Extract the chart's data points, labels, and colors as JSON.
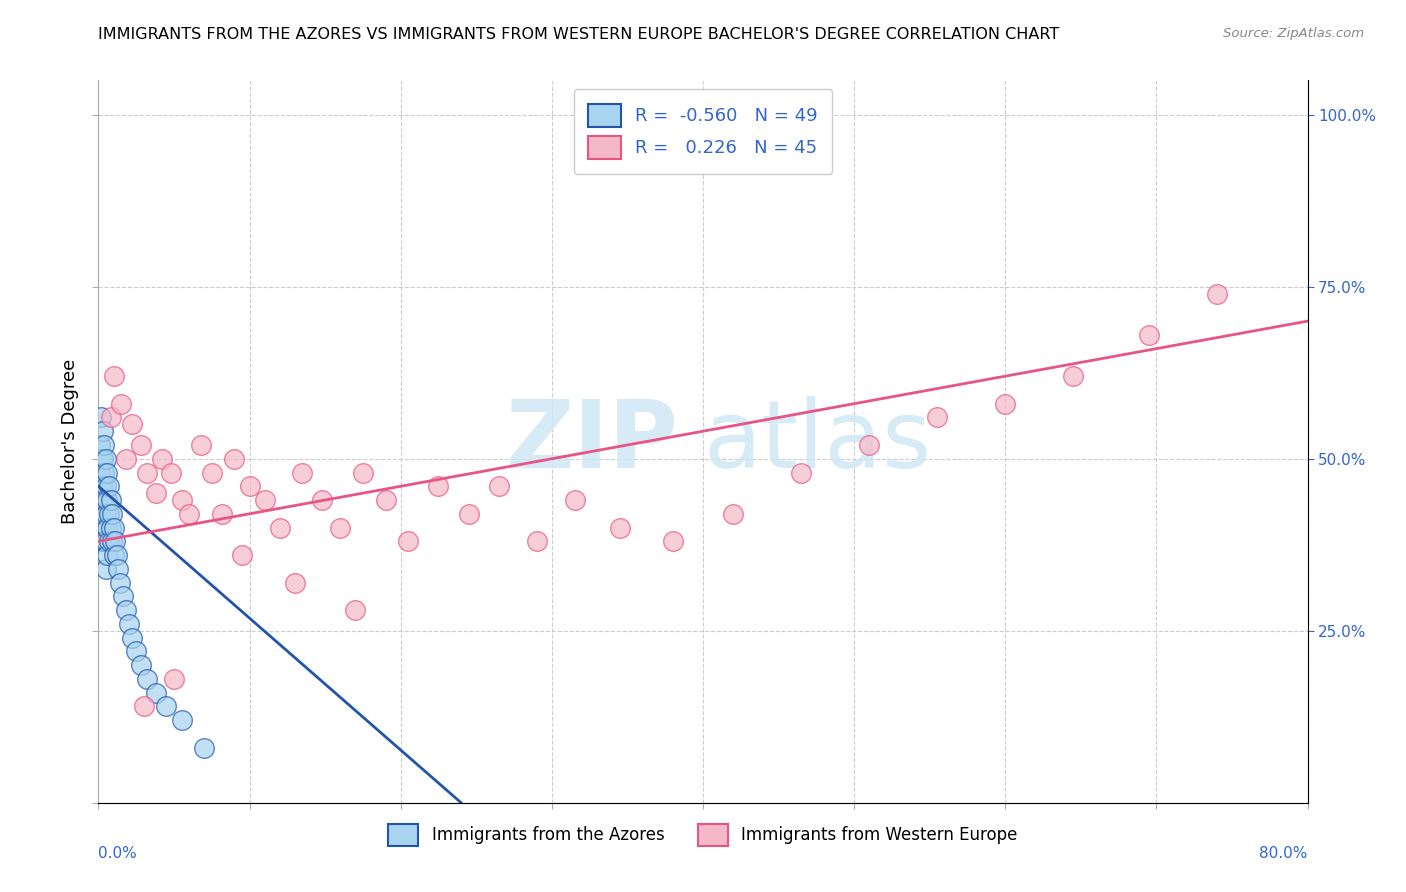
{
  "title": "IMMIGRANTS FROM THE AZORES VS IMMIGRANTS FROM WESTERN EUROPE BACHELOR'S DEGREE CORRELATION CHART",
  "source": "Source: ZipAtlas.com",
  "ylabel": "Bachelor's Degree",
  "legend_label1": "Immigrants from the Azores",
  "legend_label2": "Immigrants from Western Europe",
  "R1": "-0.560",
  "N1": "49",
  "R2": "0.226",
  "N2": "45",
  "color1": "#a8d4f0",
  "color2": "#f5b8c8",
  "line_color1": "#2255aa",
  "line_color2": "#e85585",
  "watermark_zip": "ZIP",
  "watermark_atlas": "atlas",
  "background": "#ffffff",
  "xlim": [
    0,
    0.8
  ],
  "ylim": [
    0,
    1.05
  ],
  "scatter1_x": [
    0.001,
    0.001,
    0.001,
    0.002,
    0.002,
    0.002,
    0.002,
    0.003,
    0.003,
    0.003,
    0.003,
    0.003,
    0.004,
    0.004,
    0.004,
    0.004,
    0.005,
    0.005,
    0.005,
    0.005,
    0.005,
    0.006,
    0.006,
    0.006,
    0.006,
    0.007,
    0.007,
    0.007,
    0.008,
    0.008,
    0.009,
    0.009,
    0.01,
    0.01,
    0.011,
    0.012,
    0.013,
    0.014,
    0.016,
    0.018,
    0.02,
    0.022,
    0.025,
    0.028,
    0.032,
    0.038,
    0.045,
    0.055,
    0.07
  ],
  "scatter1_y": [
    0.52,
    0.48,
    0.44,
    0.56,
    0.5,
    0.46,
    0.4,
    0.54,
    0.5,
    0.46,
    0.42,
    0.38,
    0.52,
    0.48,
    0.44,
    0.38,
    0.5,
    0.46,
    0.42,
    0.38,
    0.34,
    0.48,
    0.44,
    0.4,
    0.36,
    0.46,
    0.42,
    0.38,
    0.44,
    0.4,
    0.42,
    0.38,
    0.4,
    0.36,
    0.38,
    0.36,
    0.34,
    0.32,
    0.3,
    0.28,
    0.26,
    0.24,
    0.22,
    0.2,
    0.18,
    0.16,
    0.14,
    0.12,
    0.08
  ],
  "scatter2_x": [
    0.008,
    0.01,
    0.015,
    0.018,
    0.022,
    0.028,
    0.032,
    0.038,
    0.042,
    0.048,
    0.055,
    0.06,
    0.068,
    0.075,
    0.082,
    0.09,
    0.1,
    0.11,
    0.12,
    0.135,
    0.148,
    0.16,
    0.175,
    0.19,
    0.205,
    0.225,
    0.245,
    0.265,
    0.29,
    0.315,
    0.345,
    0.38,
    0.42,
    0.465,
    0.51,
    0.555,
    0.6,
    0.645,
    0.695,
    0.74,
    0.095,
    0.13,
    0.17,
    0.03,
    0.05
  ],
  "scatter2_y": [
    0.56,
    0.62,
    0.58,
    0.5,
    0.55,
    0.52,
    0.48,
    0.45,
    0.5,
    0.48,
    0.44,
    0.42,
    0.52,
    0.48,
    0.42,
    0.5,
    0.46,
    0.44,
    0.4,
    0.48,
    0.44,
    0.4,
    0.48,
    0.44,
    0.38,
    0.46,
    0.42,
    0.46,
    0.38,
    0.44,
    0.4,
    0.38,
    0.42,
    0.48,
    0.52,
    0.56,
    0.58,
    0.62,
    0.68,
    0.74,
    0.36,
    0.32,
    0.28,
    0.14,
    0.18
  ],
  "line1_x": [
    0.0,
    0.24
  ],
  "line1_y": [
    0.46,
    0.0
  ],
  "line2_x": [
    0.0,
    0.8
  ],
  "line2_y": [
    0.38,
    0.7
  ]
}
